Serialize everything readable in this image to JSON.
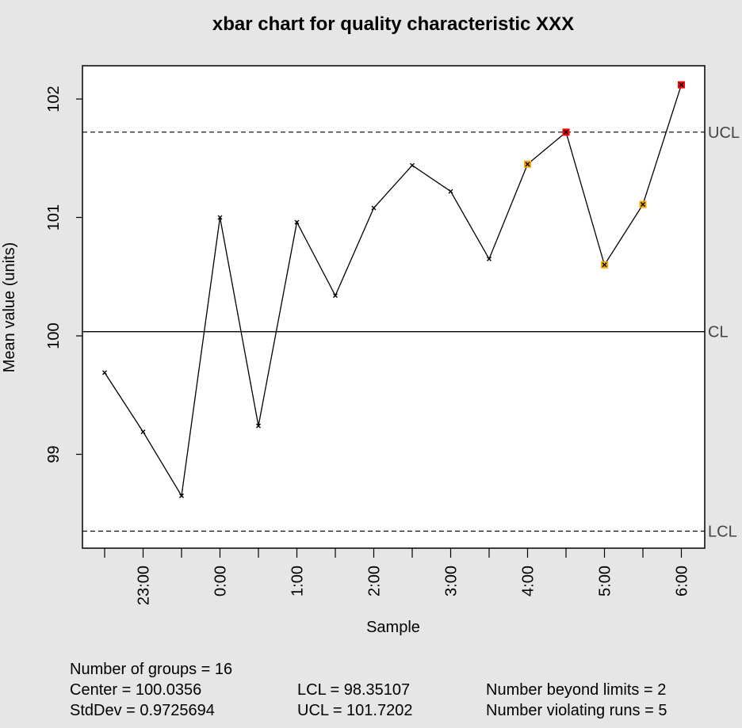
{
  "chart_data": {
    "type": "line",
    "title": "xbar chart for quality characteristic XXX",
    "xlabel": "Sample",
    "ylabel": "Mean value (units)",
    "ylim": [
      98.2,
      102.3
    ],
    "y_ticks": [
      "99",
      "100",
      "101",
      "102"
    ],
    "x_tick_labels": [
      "",
      "23:00",
      "",
      "0:00",
      "",
      "1:00",
      "",
      "2:00",
      "",
      "3:00",
      "",
      "4:00",
      "",
      "5:00",
      "",
      "6:00"
    ],
    "values": [
      99.69,
      99.19,
      98.65,
      101.0,
      99.24,
      100.96,
      100.34,
      101.08,
      101.44,
      101.22,
      100.65,
      101.45,
      101.72,
      100.6,
      101.11,
      102.12
    ],
    "point_status": [
      "ok",
      "ok",
      "ok",
      "ok",
      "ok",
      "ok",
      "ok",
      "ok",
      "ok",
      "ok",
      "ok",
      "run",
      "beyond",
      "run",
      "run",
      "beyond"
    ],
    "center_line": 100.0356,
    "lcl": 98.35107,
    "ucl": 101.7202,
    "limit_labels": {
      "ucl": "UCL",
      "cl": "CL",
      "lcl": "LCL"
    },
    "colors": {
      "ok": "#000000",
      "run": "#f5a700",
      "beyond": "#ff0000",
      "background": "#e6e6e6",
      "panel": "#ffffff"
    },
    "grid": false,
    "legend": "none"
  },
  "stats": {
    "groups": "Number of groups = 16",
    "center": "Center = 100.0356",
    "stddev": "StdDev = 0.9725694",
    "lcl": "LCL = 98.35107",
    "ucl": "UCL = 101.7202",
    "beyond": "Number beyond limits = 2",
    "runs": "Number violating runs = 5"
  }
}
